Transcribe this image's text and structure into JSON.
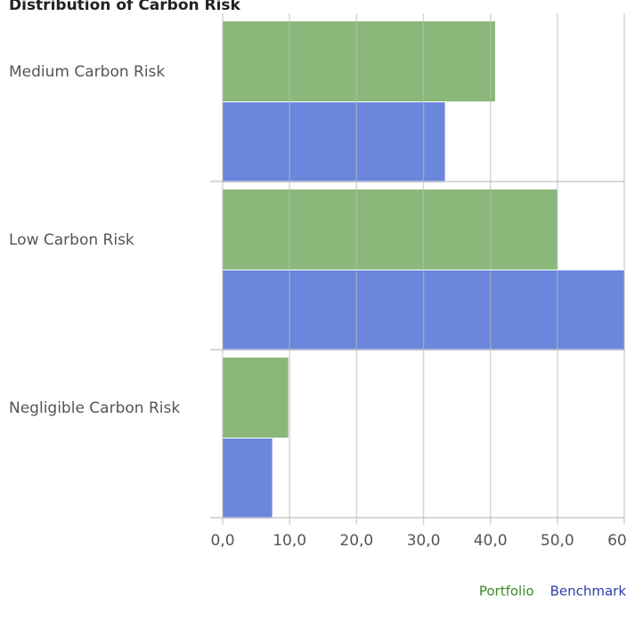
{
  "chart_data": {
    "type": "hbar",
    "title": "Distribution of Carbon Risk",
    "categories": [
      "Medium Carbon Risk",
      "Low Carbon Risk",
      "Negligible Carbon Risk"
    ],
    "series": [
      {
        "name": "Portfolio",
        "color": "#8ab87a",
        "values": [
          40.7,
          50.0,
          9.8
        ]
      },
      {
        "name": "Benchmark",
        "color": "#6a86dd",
        "values": [
          33.2,
          60.0,
          7.4
        ]
      }
    ],
    "xlim": [
      0,
      60
    ],
    "xticks": [
      {
        "value": 0,
        "label": "0,0"
      },
      {
        "value": 10,
        "label": "10,0"
      },
      {
        "value": 20,
        "label": "20,0"
      },
      {
        "value": 30,
        "label": "30,0"
      },
      {
        "value": 40,
        "label": "40,0"
      },
      {
        "value": 50,
        "label": "50,0"
      },
      {
        "value": 60,
        "label": "60,0"
      }
    ],
    "grid": true,
    "legend": "bottom-right"
  }
}
